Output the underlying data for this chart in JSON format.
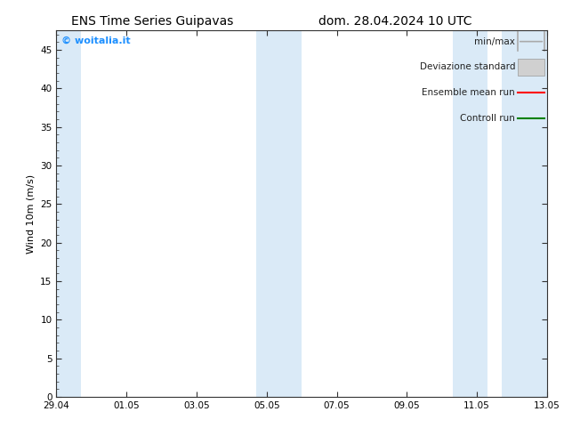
{
  "title_left": "ENS Time Series Guipavas",
  "title_right": "dom. 28.04.2024 10 UTC",
  "ylabel": "Wind 10m (m/s)",
  "ylim": [
    0,
    47.5
  ],
  "yticks": [
    0,
    5,
    10,
    15,
    20,
    25,
    30,
    35,
    40,
    45
  ],
  "xlim": [
    0,
    14
  ],
  "xtick_labels": [
    "29.04",
    "01.05",
    "03.05",
    "05.05",
    "07.05",
    "09.05",
    "11.05",
    "13.05"
  ],
  "xtick_positions": [
    0,
    2,
    4,
    6,
    8,
    10,
    12,
    14
  ],
  "background_color": "#ffffff",
  "plot_bg_color": "#ffffff",
  "band_color": "#daeaf7",
  "bands": [
    [
      -0.05,
      0.7
    ],
    [
      5.7,
      7.0
    ],
    [
      11.3,
      12.3
    ],
    [
      12.7,
      14.05
    ]
  ],
  "legend_labels": [
    "min/max",
    "Deviazione standard",
    "Ensemble mean run",
    "Controll run"
  ],
  "legend_colors_line": [
    "#999999",
    "#cccccc",
    "#ff0000",
    "#008000"
  ],
  "watermark": "© woitalia.it",
  "watermark_color": "#1e90ff",
  "title_fontsize": 10,
  "label_fontsize": 8,
  "tick_fontsize": 7.5,
  "legend_fontsize": 7.5,
  "figsize": [
    6.34,
    4.9
  ],
  "dpi": 100
}
